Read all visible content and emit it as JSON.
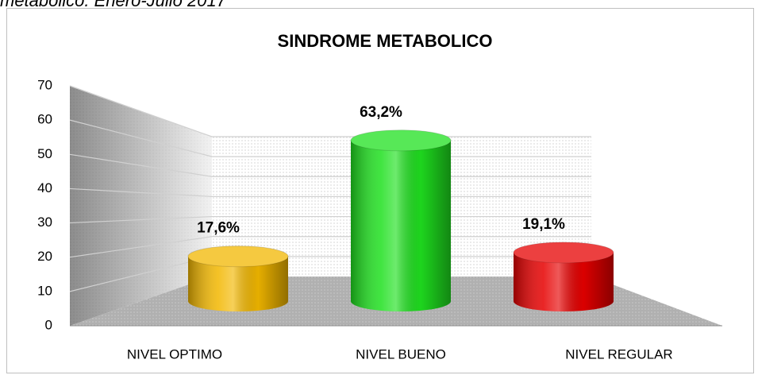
{
  "caption": "metabolico. Enero-Julio 2017",
  "chart_data": {
    "type": "bar",
    "title": "SINDROME METABOLICO",
    "categories": [
      "NIVEL OPTIMO",
      "NIVEL BUENO",
      "NIVEL REGULAR"
    ],
    "values": [
      17.6,
      63.2,
      19.1
    ],
    "value_labels": [
      "17,6%",
      "63,2%",
      "19,1%"
    ],
    "colors": [
      "#f2b700",
      "#1fe01f",
      "#e60000"
    ],
    "ylim": [
      0,
      70
    ],
    "yticks": [
      0,
      10,
      20,
      30,
      40,
      50,
      60,
      70
    ],
    "grid": true
  }
}
